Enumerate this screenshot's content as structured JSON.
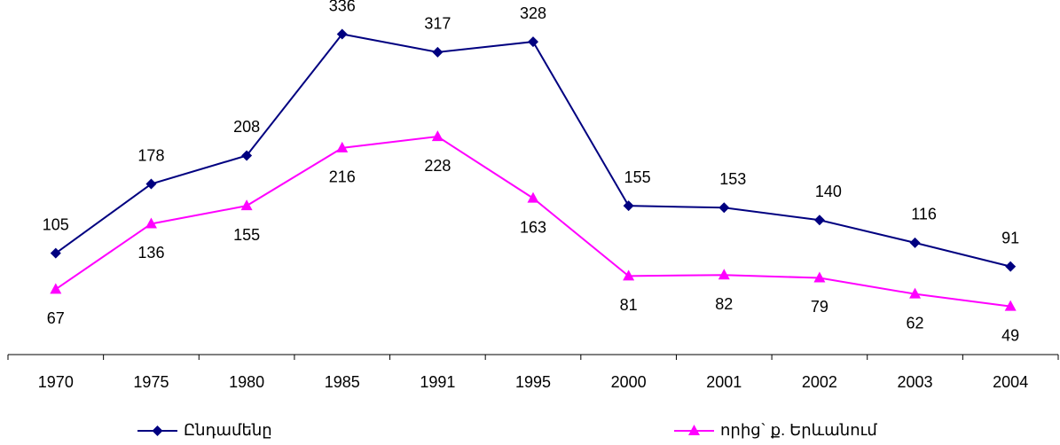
{
  "chart_data": {
    "type": "line",
    "categories": [
      "1970",
      "1975",
      "1980",
      "1985",
      "1991",
      "1995",
      "2000",
      "2001",
      "2002",
      "2003",
      "2004"
    ],
    "series": [
      {
        "name": "Ընդամենը",
        "color": "#000080",
        "marker": "diamond",
        "values": [
          105,
          178,
          208,
          336,
          317,
          328,
          155,
          153,
          140,
          116,
          91
        ]
      },
      {
        "name": "որից` ք. Երևանում",
        "color": "#ff00ff",
        "marker": "triangle",
        "values": [
          67,
          136,
          155,
          216,
          228,
          163,
          81,
          82,
          79,
          62,
          49
        ]
      }
    ],
    "ylim": [
      0,
      372
    ],
    "grid": false,
    "legend": "bottom"
  }
}
